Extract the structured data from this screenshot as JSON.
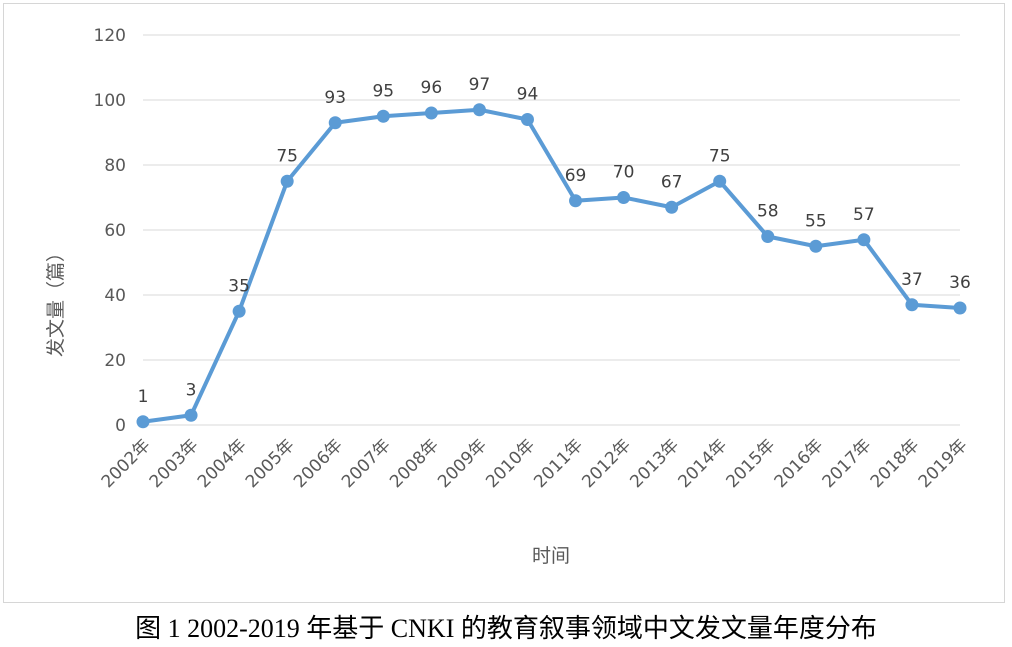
{
  "caption": "图 1 2002-2019 年基于 CNKI 的教育叙事领域中文发文量年度分布",
  "chart_data": {
    "type": "line",
    "xlabel": "时间",
    "ylabel": "发文量（篇）",
    "ylim": [
      0,
      120
    ],
    "yticks": [
      0,
      20,
      40,
      60,
      80,
      100,
      120
    ],
    "grid": true,
    "categories": [
      "2002年",
      "2003年",
      "2004年",
      "2005年",
      "2006年",
      "2007年",
      "2008年",
      "2009年",
      "2010年",
      "2011年",
      "2012年",
      "2013年",
      "2014年",
      "2015年",
      "2016年",
      "2017年",
      "2018年",
      "2019年"
    ],
    "series": [
      {
        "values": [
          1,
          3,
          35,
          75,
          93,
          95,
          96,
          97,
          94,
          69,
          70,
          67,
          75,
          58,
          55,
          57,
          37,
          36
        ],
        "color": "#5b9bd5"
      }
    ],
    "data_labels": true
  }
}
